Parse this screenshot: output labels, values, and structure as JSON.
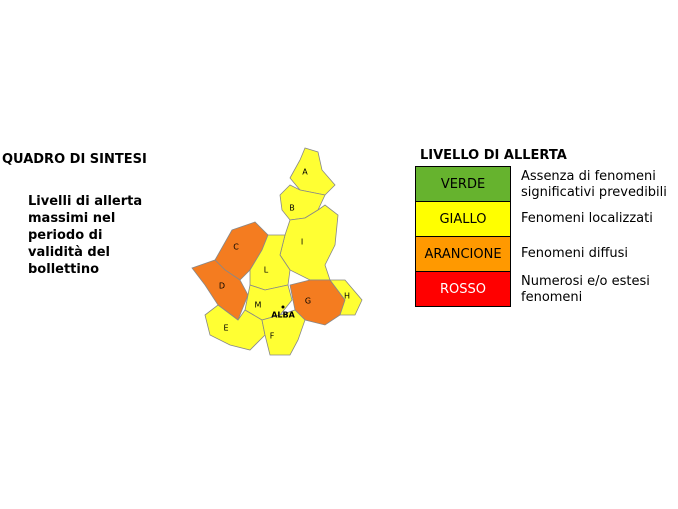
{
  "title": "QUADRO DI SINTESI",
  "subtitle": [
    "Livelli di allerta",
    "massimi nel",
    "periodo di",
    "validità del",
    "bollettino"
  ],
  "legend": {
    "title": "LIVELLO DI ALLERTA",
    "items": [
      {
        "level": "VERDE",
        "color": "#66b32e",
        "description": [
          "Assenza di fenomeni",
          "significativi prevedibili"
        ]
      },
      {
        "level": "GIALLO",
        "color": "#ffff00",
        "description": [
          "Fenomeni localizzati"
        ]
      },
      {
        "level": "ARANCIONE",
        "color": "#ff9900",
        "description": [
          "Fenomeni diffusi"
        ]
      },
      {
        "level": "ROSSO",
        "color": "#ff0000",
        "description": [
          "Numerosi e/o estesi",
          "fenomeni"
        ]
      }
    ]
  },
  "map": {
    "city": "ALBA",
    "zones": [
      {
        "label": "A",
        "color": "#ffff33"
      },
      {
        "label": "B",
        "color": "#ffff33"
      },
      {
        "label": "I",
        "color": "#ffff33"
      },
      {
        "label": "C",
        "color": "#f47c20"
      },
      {
        "label": "D",
        "color": "#f47c20"
      },
      {
        "label": "L",
        "color": "#ffff33"
      },
      {
        "label": "M",
        "color": "#ffff33"
      },
      {
        "label": "G",
        "color": "#f47c20"
      },
      {
        "label": "H",
        "color": "#ffff33"
      },
      {
        "label": "E",
        "color": "#ffff33"
      },
      {
        "label": "F",
        "color": "#ffff33"
      }
    ]
  }
}
